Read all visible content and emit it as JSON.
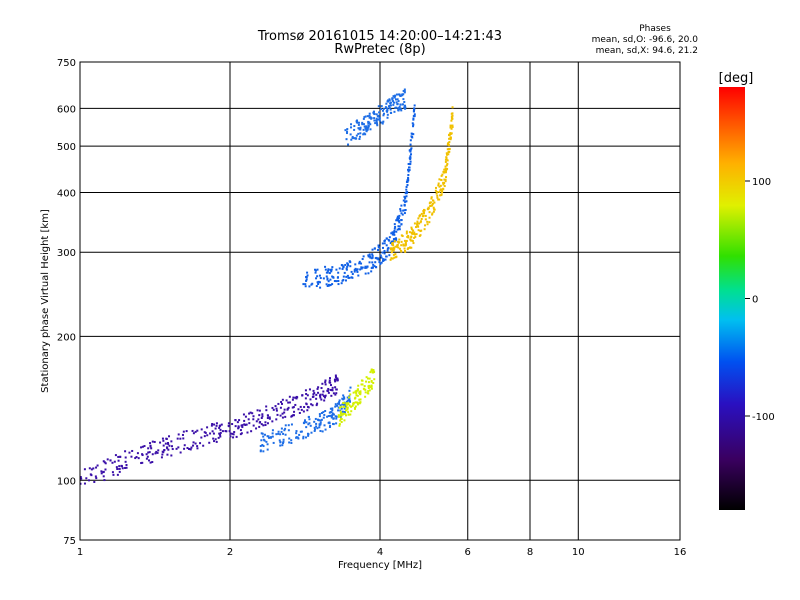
{
  "chart_data": {
    "type": "scatter",
    "title": "Tromsø 20161015 14:20:00–14:21:43",
    "subtitle": "RwPretec (8p)",
    "xlabel": "Frequency [MHz]",
    "ylabel": "Stationary phase Virtual Height [km]",
    "x_scale": "log",
    "y_scale": "log",
    "xlim": [
      1,
      16
    ],
    "ylim": [
      75,
      750
    ],
    "x_ticks": [
      1,
      2,
      4,
      6,
      8,
      10,
      16
    ],
    "x_tick_labels": [
      "1",
      "2",
      "4",
      "6",
      "8",
      "10",
      "16"
    ],
    "x_grid": [
      2,
      4,
      6,
      8,
      10
    ],
    "y_ticks": [
      75,
      100,
      200,
      300,
      400,
      500,
      600,
      750
    ],
    "y_tick_labels": [
      "75",
      "100",
      "200",
      "300",
      "400",
      "500",
      "600",
      "750"
    ],
    "y_grid": [
      100,
      200,
      300,
      400,
      500,
      600
    ],
    "grid": true,
    "stats": {
      "heading": "Phases",
      "line_o": "mean, sd,O: -96.6, 20.0",
      "line_x": "mean, sd,X:  94.6, 21.2"
    },
    "colorbar": {
      "label": "[deg]",
      "range": [
        -180,
        180
      ],
      "ticks": [
        100,
        0,
        -100
      ],
      "tick_labels": [
        "100",
        "0",
        "-100"
      ],
      "placement": "right"
    },
    "series": [
      {
        "color": "#3a0fa8",
        "trend_x": [
          1.0,
          1.3,
          1.6,
          2.0,
          2.4,
          2.9,
          3.3
        ],
        "trend_y": [
          100,
          112,
          120,
          128,
          137,
          148,
          160
        ]
      },
      {
        "color": "#1e6ee6",
        "trend_x": [
          2.3,
          2.8,
          3.2,
          3.5
        ],
        "trend_y": [
          120,
          128,
          135,
          150
        ]
      },
      {
        "color": "#d4f000",
        "trend_x": [
          3.3,
          3.6,
          3.9
        ],
        "trend_y": [
          135,
          150,
          165
        ]
      },
      {
        "color": "#1060e6",
        "trend_x": [
          2.8,
          3.3,
          3.8,
          4.2,
          4.5,
          4.7
        ],
        "trend_y": [
          262,
          270,
          285,
          310,
          380,
          600
        ]
      },
      {
        "color": "#f0c000",
        "trend_x": [
          4.2,
          4.6,
          5.0,
          5.4,
          5.6
        ],
        "trend_y": [
          300,
          320,
          360,
          430,
          580
        ]
      },
      {
        "color": "#1e6ee6",
        "trend_x": [
          3.4,
          3.8,
          4.2,
          4.5
        ],
        "trend_y": [
          520,
          560,
          600,
          630
        ]
      }
    ]
  }
}
